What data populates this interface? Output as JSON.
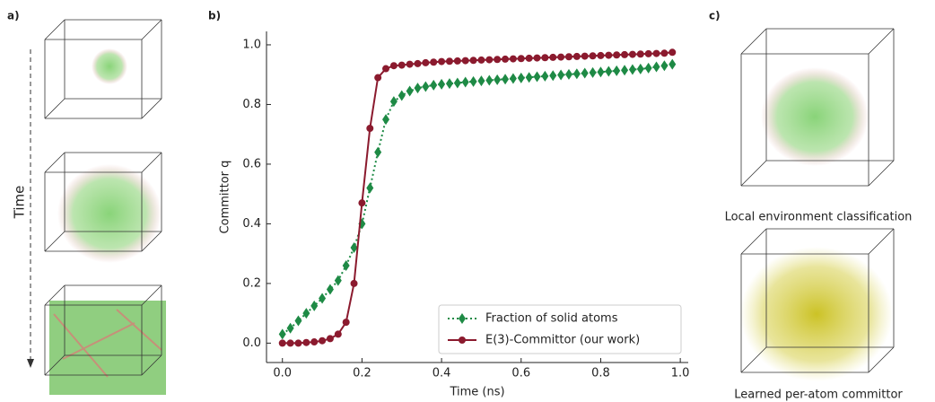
{
  "panel_labels": [
    "a)",
    "b)",
    "c)"
  ],
  "time_label": "Time",
  "captions": [
    "Local environment classification",
    "Learned per-atom committor"
  ],
  "chart_data": {
    "type": "line",
    "xlabel": "Time (ns)",
    "ylabel": "Committor q",
    "x": [
      0,
      0.02,
      0.04,
      0.06,
      0.08,
      0.1,
      0.12,
      0.14,
      0.16,
      0.18,
      0.2,
      0.22,
      0.24,
      0.26,
      0.28,
      0.3,
      0.32,
      0.34,
      0.36,
      0.38,
      0.4,
      0.42,
      0.44,
      0.46,
      0.48,
      0.5,
      0.52,
      0.54,
      0.56,
      0.58,
      0.6,
      0.62,
      0.64,
      0.66,
      0.68,
      0.7,
      0.72,
      0.74,
      0.76,
      0.78,
      0.8,
      0.82,
      0.84,
      0.86,
      0.88,
      0.9,
      0.92,
      0.94,
      0.96,
      0.98
    ],
    "series": [
      {
        "name": "Fraction of solid atoms",
        "color": "#1e8a45",
        "style": "dotted",
        "marker": "diamond",
        "values": [
          0.03,
          0.05,
          0.075,
          0.1,
          0.125,
          0.15,
          0.18,
          0.21,
          0.26,
          0.32,
          0.4,
          0.52,
          0.64,
          0.75,
          0.81,
          0.83,
          0.845,
          0.855,
          0.86,
          0.865,
          0.868,
          0.87,
          0.872,
          0.875,
          0.877,
          0.879,
          0.881,
          0.883,
          0.885,
          0.887,
          0.889,
          0.891,
          0.893,
          0.895,
          0.897,
          0.899,
          0.901,
          0.903,
          0.905,
          0.907,
          0.909,
          0.911,
          0.913,
          0.915,
          0.917,
          0.919,
          0.922,
          0.926,
          0.93,
          0.935
        ]
      },
      {
        "name": "E(3)-Committor (our work)",
        "color": "#8b1a2e",
        "style": "solid",
        "marker": "circle",
        "values": [
          0,
          0,
          0,
          0.002,
          0.004,
          0.008,
          0.015,
          0.03,
          0.07,
          0.2,
          0.47,
          0.72,
          0.89,
          0.92,
          0.93,
          0.932,
          0.935,
          0.937,
          0.94,
          0.942,
          0.944,
          0.945,
          0.946,
          0.947,
          0.948,
          0.949,
          0.95,
          0.951,
          0.952,
          0.953,
          0.954,
          0.955,
          0.956,
          0.957,
          0.958,
          0.959,
          0.96,
          0.961,
          0.962,
          0.963,
          0.964,
          0.965,
          0.966,
          0.967,
          0.968,
          0.969,
          0.97,
          0.971,
          0.972,
          0.975
        ]
      }
    ],
    "xlim": [
      -0.04,
      1.02
    ],
    "ylim": [
      -0.065,
      1.045
    ],
    "xticks": [
      {
        "value": 0,
        "label": "0.0"
      },
      {
        "value": 0.2,
        "label": "0.2"
      },
      {
        "value": 0.4,
        "label": "0.4"
      },
      {
        "value": 0.6,
        "label": "0.6"
      },
      {
        "value": 0.8,
        "label": "0.8"
      },
      {
        "value": 1,
        "label": "1.0"
      }
    ],
    "yticks": [
      {
        "value": 0,
        "label": "0.0"
      },
      {
        "value": 0.2,
        "label": "0.2"
      },
      {
        "value": 0.4,
        "label": "0.4"
      },
      {
        "value": 0.6,
        "label": "0.6"
      },
      {
        "value": 0.8,
        "label": "0.8"
      },
      {
        "value": 1,
        "label": "1.0"
      }
    ],
    "legend": "lower right"
  }
}
